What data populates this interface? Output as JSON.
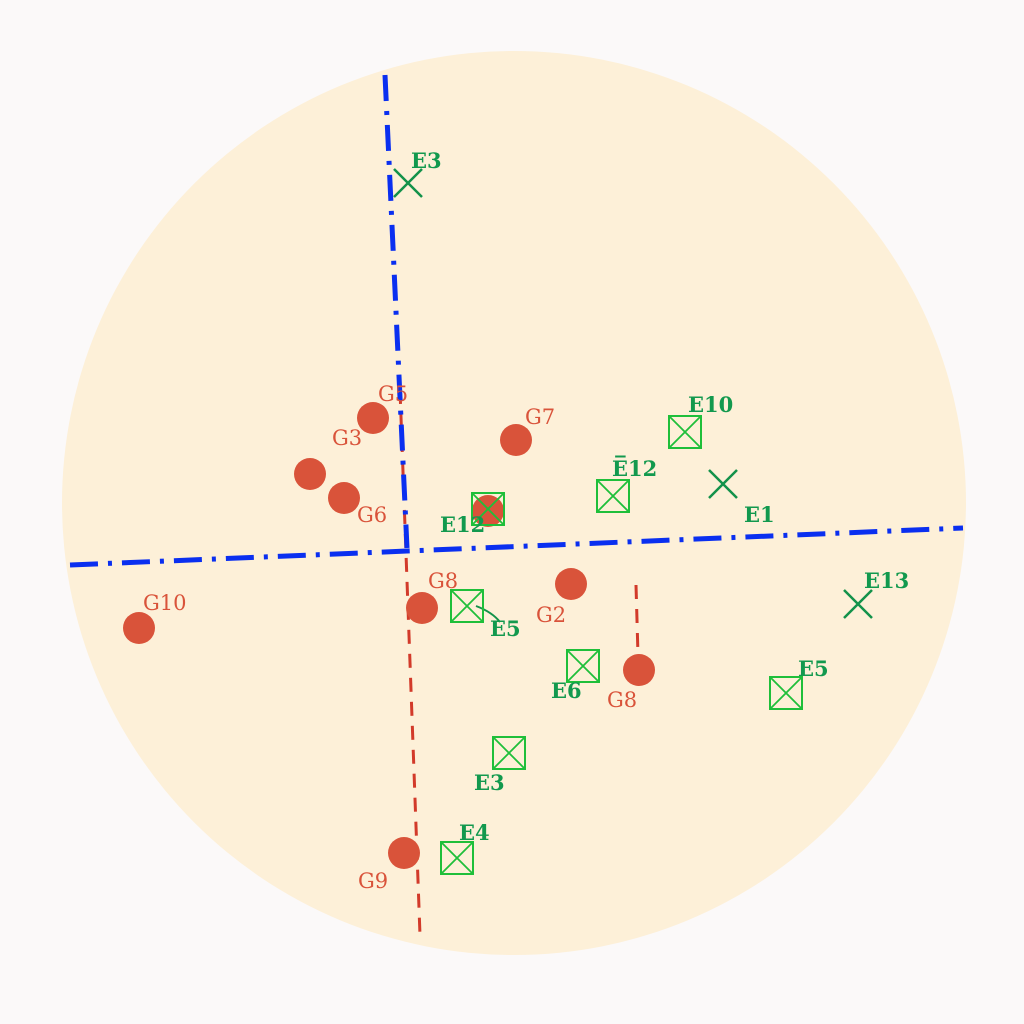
{
  "colors": {
    "background": "#fbf9f9",
    "disc": "#fdf0d8",
    "axis": "#0a2ff0",
    "guide": "#d23a2a",
    "g_point": "#d9533a",
    "e_marker": "#1fbf3a",
    "e_cross": "#13924a",
    "e_label": "#12994e"
  },
  "g_points": [
    {
      "label": "G5",
      "icon": "filled-circle"
    },
    {
      "label": "G3",
      "icon": "filled-circle"
    },
    {
      "label": "G7",
      "icon": "filled-circle"
    },
    {
      "label": "",
      "icon": "filled-circle"
    },
    {
      "label": "G6",
      "icon": "filled-circle"
    },
    {
      "label": "G8",
      "icon": "filled-circle"
    },
    {
      "label": "G2",
      "icon": "filled-circle"
    },
    {
      "label": "G8",
      "icon": "filled-circle"
    },
    {
      "label": "G10",
      "icon": "filled-circle"
    },
    {
      "label": "G9",
      "icon": "filled-circle"
    },
    {
      "label": "",
      "icon": "filled-circle"
    }
  ],
  "e_points": [
    {
      "label": "E3",
      "icon": "x-mark"
    },
    {
      "label": "E10",
      "icon": "boxed-x"
    },
    {
      "label": "E̅12",
      "icon": "boxed-x"
    },
    {
      "label": "E1",
      "icon": "x-mark"
    },
    {
      "label": "E12",
      "icon": "boxed-x"
    },
    {
      "label": "E13",
      "icon": "x-mark"
    },
    {
      "label": "E5",
      "icon": "boxed-x"
    },
    {
      "label": "E6",
      "icon": "boxed-x"
    },
    {
      "label": "E5",
      "icon": "boxed-x"
    },
    {
      "label": "E3",
      "icon": "boxed-x"
    },
    {
      "label": "E4",
      "icon": "boxed-x"
    }
  ]
}
